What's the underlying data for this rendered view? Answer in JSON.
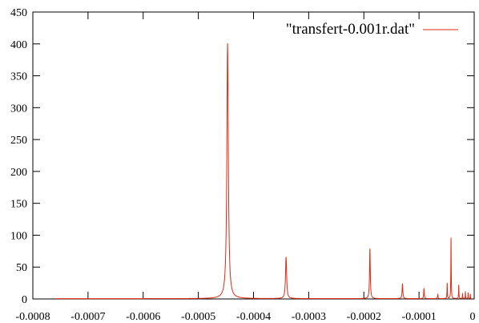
{
  "chart_data": {
    "type": "line",
    "title": "",
    "xlabel": "",
    "ylabel": "",
    "grid": false,
    "legend_position": "top-right",
    "xlim": [
      -0.0008,
      0
    ],
    "ylim": [
      0,
      450
    ],
    "x_ticks": [
      {
        "value": -0.0008,
        "label": "-0.0008"
      },
      {
        "value": -0.0007,
        "label": "-0.0007"
      },
      {
        "value": -0.0006,
        "label": "-0.0006"
      },
      {
        "value": -0.0005,
        "label": "-0.0005"
      },
      {
        "value": -0.0004,
        "label": "-0.0004"
      },
      {
        "value": -0.0003,
        "label": "-0.0003"
      },
      {
        "value": -0.0002,
        "label": "-0.0002"
      },
      {
        "value": -0.0001,
        "label": "-0.0001"
      },
      {
        "value": 0,
        "label": "0"
      }
    ],
    "y_ticks": [
      {
        "value": 0,
        "label": "0"
      },
      {
        "value": 50,
        "label": "50"
      },
      {
        "value": 100,
        "label": "100"
      },
      {
        "value": 150,
        "label": "150"
      },
      {
        "value": 200,
        "label": "200"
      },
      {
        "value": 250,
        "label": "250"
      },
      {
        "value": 300,
        "label": "300"
      },
      {
        "value": 350,
        "label": "350"
      },
      {
        "value": 400,
        "label": "400"
      },
      {
        "value": 450,
        "label": "450"
      }
    ],
    "series": [
      {
        "name": "\"transfert-0.001r.dat\"",
        "color": "#e4280f",
        "x_range": [
          -0.00076,
          -5e-06
        ],
        "baseline": 0.5,
        "peaks": [
          {
            "x": -0.000447,
            "y": 400,
            "width": 1.6e-06
          },
          {
            "x": -0.000341,
            "y": 65,
            "width": 1.2e-06
          },
          {
            "x": -0.000189,
            "y": 78,
            "width": 8e-07
          },
          {
            "x": -0.00013,
            "y": 23,
            "width": 8e-07
          },
          {
            "x": -9.1e-05,
            "y": 16,
            "width": 6e-07
          },
          {
            "x": -6.6e-05,
            "y": 7,
            "width": 5e-07
          },
          {
            "x": -4.9e-05,
            "y": 24,
            "width": 4e-07
          },
          {
            "x": -4.2e-05,
            "y": 95,
            "width": 4e-07
          },
          {
            "x": -2.8e-05,
            "y": 21,
            "width": 4e-07
          },
          {
            "x": -2.1e-05,
            "y": 8,
            "width": 3e-07
          },
          {
            "x": -1.6e-05,
            "y": 11,
            "width": 3e-07
          },
          {
            "x": -1.1e-05,
            "y": 9,
            "width": 3e-07
          },
          {
            "x": -7e-06,
            "y": 7,
            "width": 3e-07
          }
        ]
      }
    ]
  }
}
